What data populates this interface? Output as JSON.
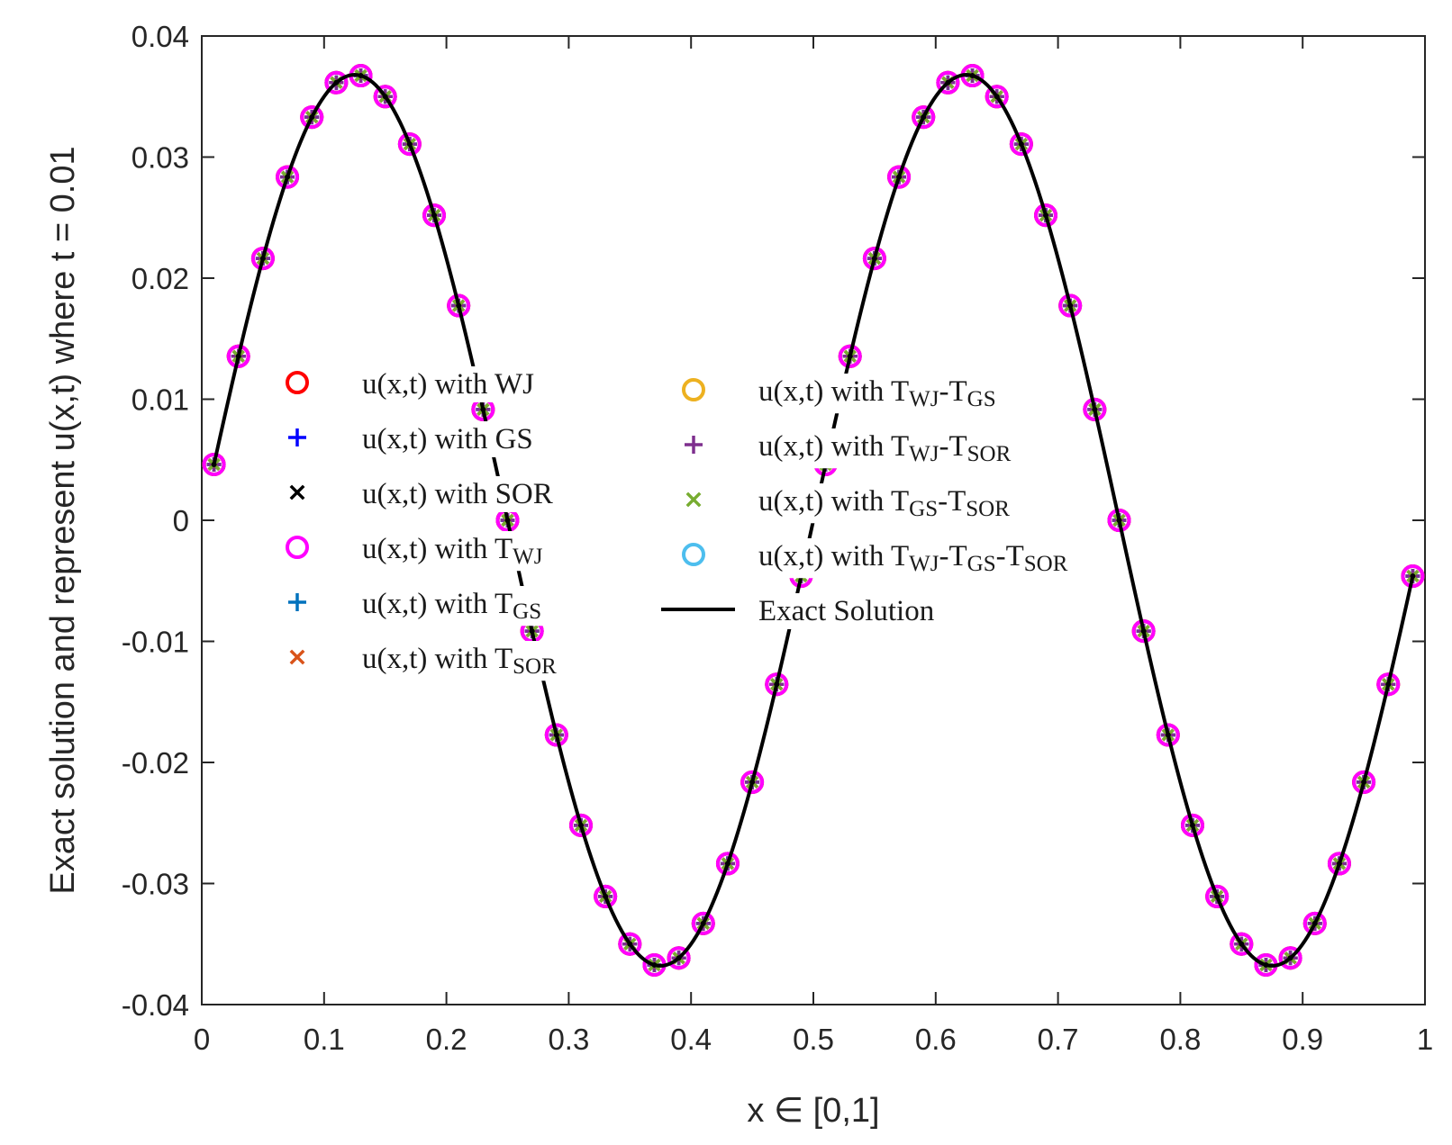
{
  "chart_data": {
    "type": "line",
    "xlabel": "x ∈ [0,1]",
    "ylabel": "Exact solution and represent u(x,t) where t = 0.01",
    "xlim": [
      0,
      1
    ],
    "ylim": [
      -0.04,
      0.04
    ],
    "x_ticks": [
      "0",
      "0.1",
      "0.2",
      "0.3",
      "0.4",
      "0.5",
      "0.6",
      "0.7",
      "0.8",
      "0.9",
      "1"
    ],
    "y_ticks": [
      "-0.04",
      "-0.03",
      "-0.02",
      "-0.01",
      "0",
      "0.01",
      "0.02",
      "0.03",
      "0.04"
    ],
    "grid": false,
    "legend_position": "center",
    "amplitude": 0.0368,
    "wavenumber_pi": 4,
    "x_start": 0.01,
    "x_step": 0.02,
    "point_count": 50,
    "curve_x_range": [
      0.01,
      0.99
    ],
    "series": [
      {
        "name": "u(x,t) with WJ",
        "label_main": "u(x,t) with WJ",
        "label_sub": [],
        "marker": "circle",
        "color": "#ff0000"
      },
      {
        "name": "u(x,t) with GS",
        "label_main": "u(x,t) with GS",
        "label_sub": [],
        "marker": "plus",
        "color": "#0000ff"
      },
      {
        "name": "u(x,t) with SOR",
        "label_main": "u(x,t) with SOR",
        "label_sub": [],
        "marker": "x",
        "color": "#000000"
      },
      {
        "name": "u(x,t) with TWJ",
        "label_main": "u(x,t) with ",
        "label_sub": [
          {
            "t": "T",
            "s": "WJ"
          }
        ],
        "marker": "circle",
        "color": "#ff00ff"
      },
      {
        "name": "u(x,t) with TGS",
        "label_main": "u(x,t) with ",
        "label_sub": [
          {
            "t": "T",
            "s": "GS"
          }
        ],
        "marker": "plus",
        "color": "#0072bd"
      },
      {
        "name": "u(x,t) with TSOR",
        "label_main": "u(x,t) with ",
        "label_sub": [
          {
            "t": "T",
            "s": "SOR"
          }
        ],
        "marker": "x",
        "color": "#d95319"
      },
      {
        "name": "u(x,t) with TWJ-TGS",
        "label_main": "u(x,t) with ",
        "label_sub": [
          {
            "t": "T",
            "s": "WJ"
          },
          {
            "t": "-T",
            "s": "GS"
          }
        ],
        "marker": "circle",
        "color": "#edb120"
      },
      {
        "name": "u(x,t) with TWJ-TSOR",
        "label_main": "u(x,t) with ",
        "label_sub": [
          {
            "t": "T",
            "s": "WJ"
          },
          {
            "t": "-T",
            "s": "SOR"
          }
        ],
        "marker": "plus",
        "color": "#7e2f8e"
      },
      {
        "name": "u(x,t) with TGS-TSOR",
        "label_main": "u(x,t) with ",
        "label_sub": [
          {
            "t": "T",
            "s": "GS"
          },
          {
            "t": "-T",
            "s": "SOR"
          }
        ],
        "marker": "x",
        "color": "#77ac30"
      },
      {
        "name": "u(x,t) with TWJ-TGS-TSOR",
        "label_main": "u(x,t) with ",
        "label_sub": [
          {
            "t": "T",
            "s": "WJ"
          },
          {
            "t": "-T",
            "s": "GS"
          },
          {
            "t": "-T",
            "s": "SOR"
          }
        ],
        "marker": "circle",
        "color": "#4dbeee"
      },
      {
        "name": "Exact Solution",
        "label_main": "Exact Solution",
        "label_sub": [],
        "marker": "line",
        "color": "#000000"
      }
    ]
  }
}
